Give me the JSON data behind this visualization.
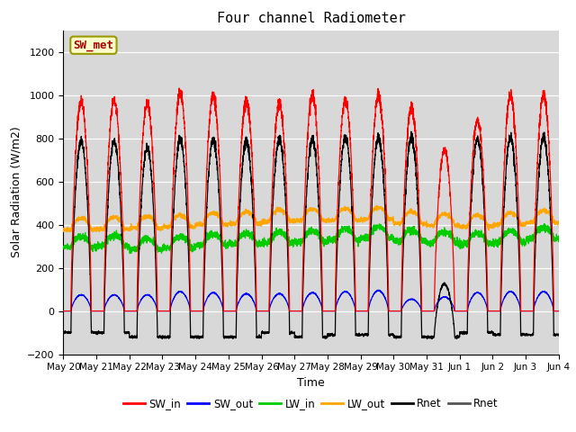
{
  "title": "Four channel Radiometer",
  "xlabel": "Time",
  "ylabel": "Solar Radiation (W/m2)",
  "ylim": [
    -200,
    1300
  ],
  "yticks": [
    -200,
    0,
    200,
    400,
    600,
    800,
    1000,
    1200
  ],
  "x_labels": [
    "May 20",
    "May 21",
    "May 22",
    "May 23",
    "May 24",
    "May 25",
    "May 26",
    "May 27",
    "May 28",
    "May 29",
    "May 30",
    "May 31",
    "Jun 1",
    "Jun 2",
    "Jun 3",
    "Jun 4"
  ],
  "n_days": 15,
  "pts_per_day": 288,
  "SW_in_peak": [
    970,
    975,
    960,
    1010,
    1000,
    975,
    960,
    1000,
    975,
    1000,
    940,
    745,
    880,
    1000,
    1000
  ],
  "SW_out_peak": [
    75,
    75,
    75,
    90,
    85,
    80,
    80,
    85,
    90,
    95,
    55,
    65,
    85,
    90,
    90
  ],
  "LW_in_base": [
    295,
    300,
    285,
    295,
    305,
    310,
    315,
    320,
    330,
    340,
    325,
    315,
    310,
    320,
    335
  ],
  "LW_out_base": [
    375,
    380,
    385,
    390,
    400,
    405,
    415,
    418,
    420,
    425,
    405,
    395,
    390,
    400,
    410
  ],
  "Rnet_peak": [
    785,
    785,
    755,
    795,
    795,
    790,
    795,
    795,
    805,
    805,
    805,
    125,
    795,
    805,
    805
  ],
  "Rnet_night": [
    -100,
    -100,
    -120,
    -120,
    -120,
    -120,
    -100,
    -120,
    -110,
    -110,
    -120,
    -120,
    -100,
    -110,
    -110
  ],
  "colors": {
    "SW_in": "#ff0000",
    "SW_out": "#0000ff",
    "LW_in": "#00cc00",
    "LW_out": "#ffa500",
    "Rnet_black": "#000000",
    "Rnet_dark": "#555555"
  },
  "annotation_text": "SW_met",
  "annotation_color": "#aa0000",
  "annotation_bg": "#ffffcc",
  "annotation_edge": "#999900",
  "bg_color": "#d8d8d8",
  "grid_color": "#ffffff",
  "figure_bg": "#ffffff"
}
